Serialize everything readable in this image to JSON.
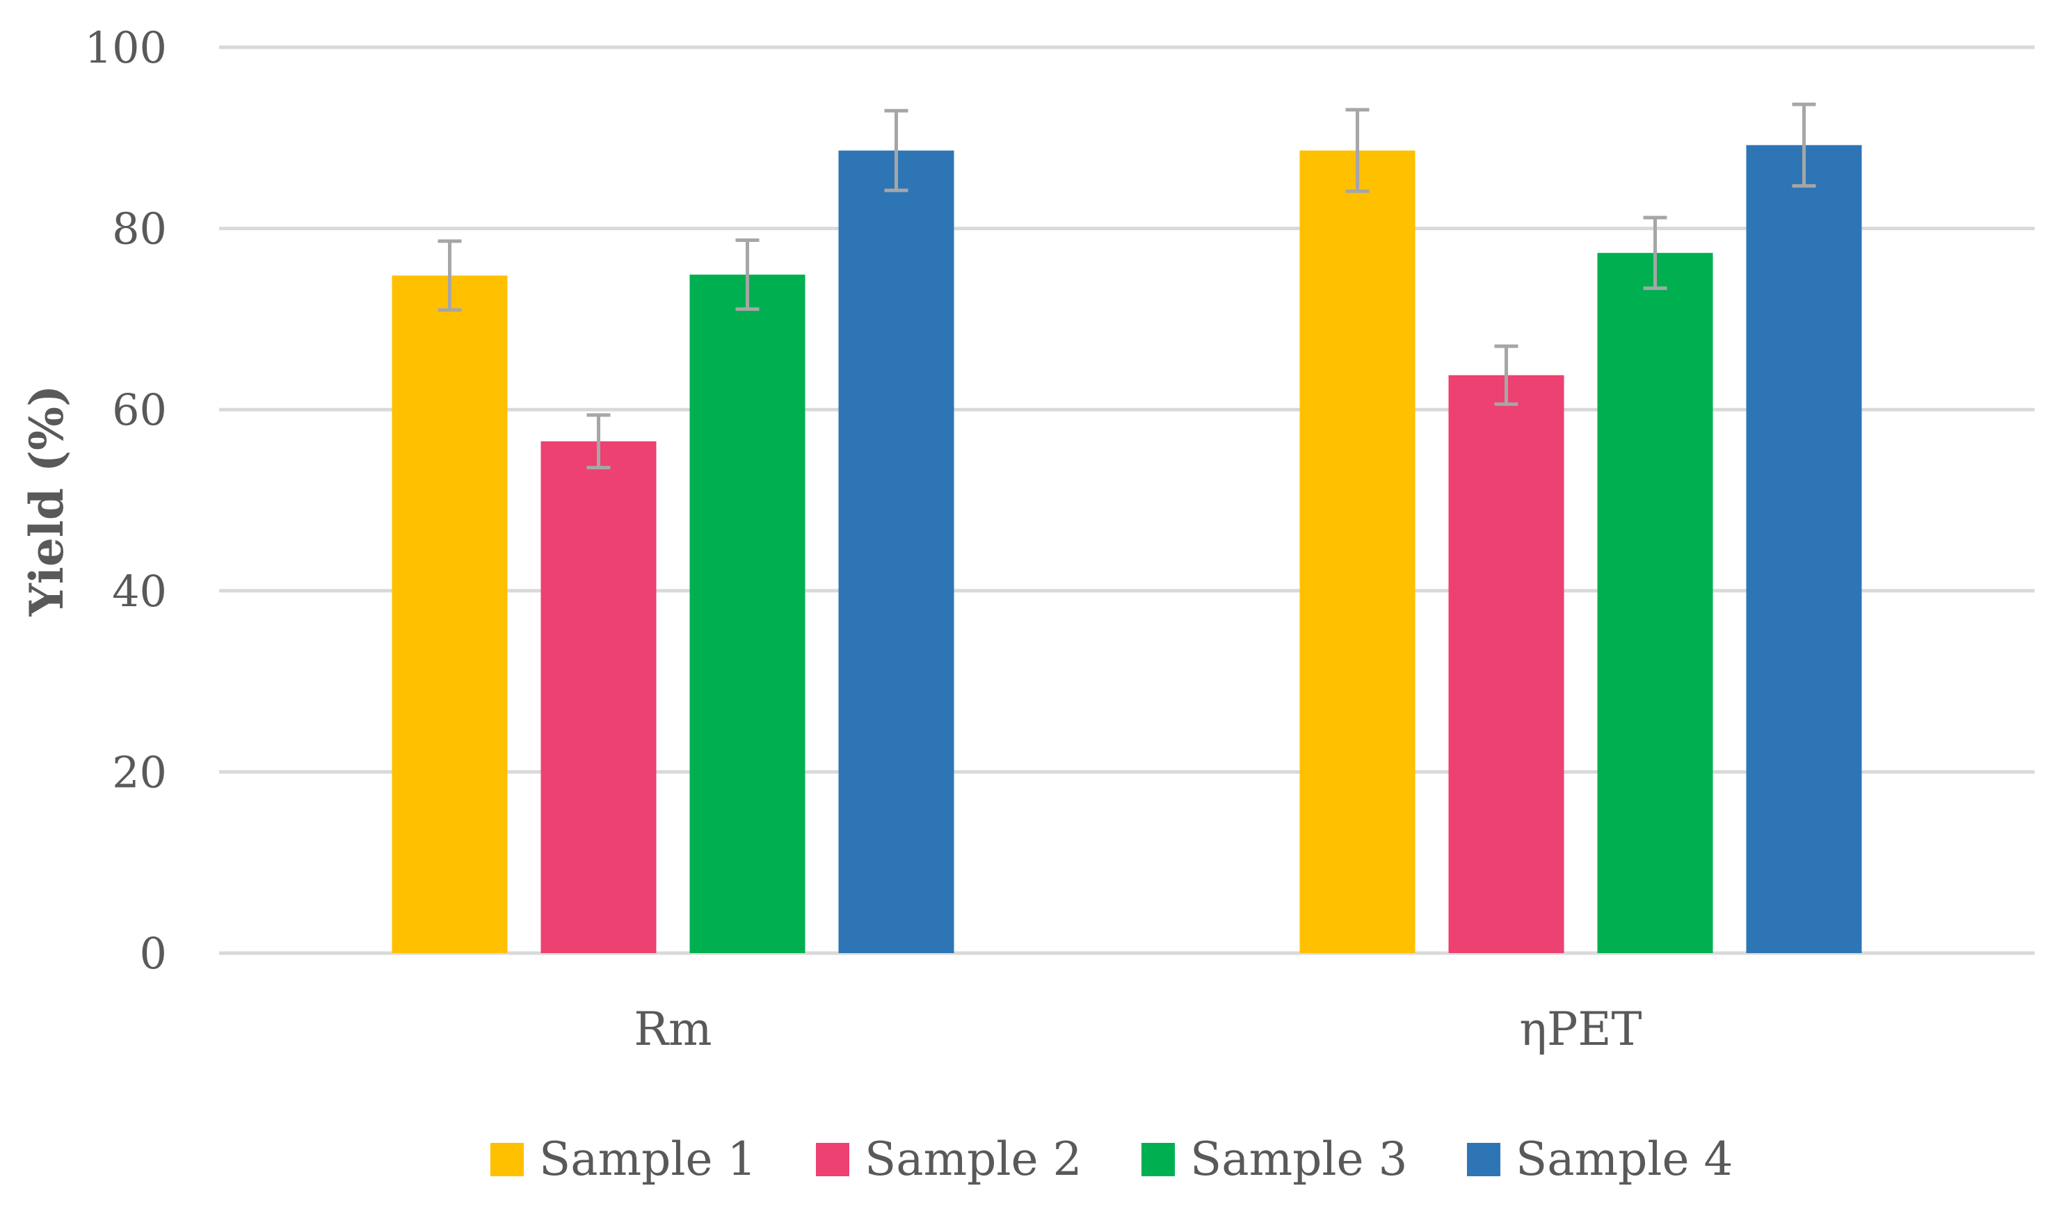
{
  "chart_data": {
    "type": "bar",
    "title": "",
    "xlabel": "",
    "ylabel": "Yield (%)",
    "ylim": [
      0,
      100
    ],
    "yticks": [
      0,
      20,
      40,
      60,
      80,
      100
    ],
    "ytick_labels": [
      "0",
      "20",
      "40",
      "60",
      "80",
      "100"
    ],
    "grid": true,
    "legend_position": "bottom",
    "categories": [
      "Rm",
      "ηPET"
    ],
    "series": [
      {
        "name": "Sample 1",
        "color": "#FFC000",
        "values": [
          74.8,
          88.6
        ],
        "errors": [
          3.8,
          4.5
        ]
      },
      {
        "name": "Sample 2",
        "color": "#EC4171",
        "values": [
          56.5,
          63.8
        ],
        "errors": [
          2.9,
          3.2
        ]
      },
      {
        "name": "Sample 3",
        "color": "#00B050",
        "values": [
          74.9,
          77.3
        ],
        "errors": [
          3.8,
          3.9
        ]
      },
      {
        "name": "Sample 4",
        "color": "#2E75B6",
        "values": [
          88.6,
          89.2
        ],
        "errors": [
          4.4,
          4.5
        ]
      }
    ],
    "colors": {
      "gridline": "#D9D9D9",
      "errorbar": "#A6A6A6",
      "text": "#595959"
    }
  }
}
